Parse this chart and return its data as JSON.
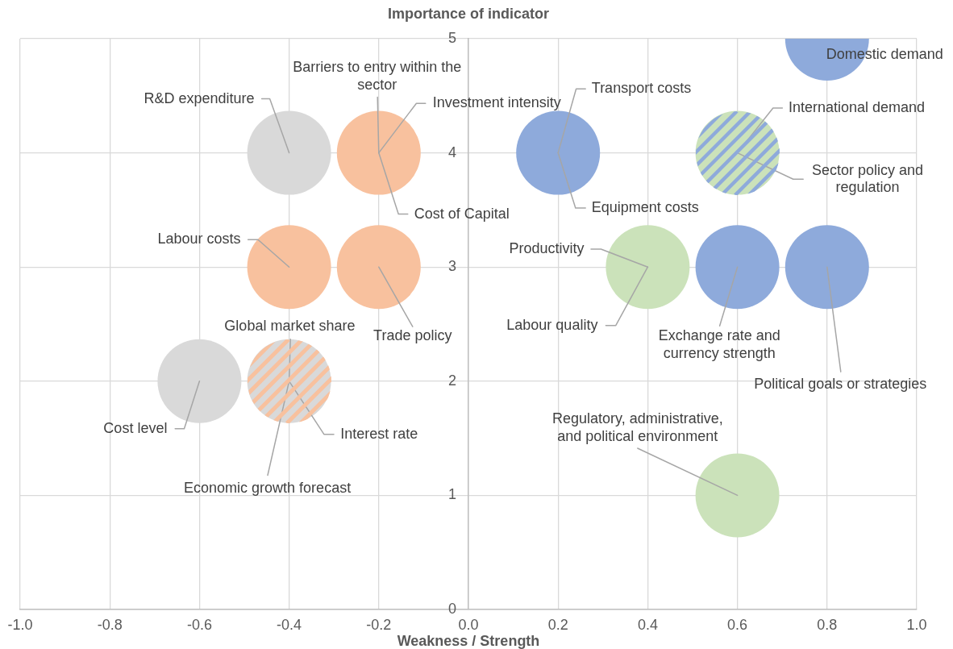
{
  "chart_data": {
    "type": "bubble",
    "xlabel": "Weakness / Strength",
    "ylabel": "Importance of indicator",
    "x": [
      -0.4,
      -0.2,
      0.2,
      0.8,
      0.6,
      -0.4,
      -0.2,
      0.4,
      0.6,
      0.8,
      -0.4,
      -0.6,
      0.6
    ],
    "values": [
      4,
      4,
      4,
      5,
      4,
      3,
      3,
      3,
      3,
      3,
      2,
      2,
      1
    ],
    "sizes": [
      1,
      1,
      1,
      1,
      1,
      1,
      1,
      1,
      1,
      1,
      1,
      1,
      1
    ],
    "colors": [
      "#d9d9d9",
      "#f8c19e",
      "#8eaadb",
      "#8eaadb",
      "#cbe2ba",
      "#f8c19e",
      "#f8c19e",
      "#cbe2ba",
      "#8eaadb",
      "#8eaadb",
      "#d9d9d9",
      "#d9d9d9",
      "#cbe2ba"
    ],
    "xlim": [
      -1,
      1
    ],
    "xticks": [
      {
        "value": -1,
        "label": "-1.0"
      },
      {
        "value": -0.8,
        "label": "-0.8"
      },
      {
        "value": -0.6,
        "label": "-0.6"
      },
      {
        "value": -0.4,
        "label": "-0.4"
      },
      {
        "value": -0.2,
        "label": "-0.2"
      },
      {
        "value": 0,
        "label": "0.0"
      },
      {
        "value": 0.2,
        "label": "0.2"
      },
      {
        "value": 0.4,
        "label": "0.4"
      },
      {
        "value": 0.6,
        "label": "0.6"
      },
      {
        "value": 0.8,
        "label": "0.8"
      },
      {
        "value": 1,
        "label": "1.0"
      }
    ],
    "ylim": [
      0,
      5
    ],
    "yticks": [
      0,
      1,
      2,
      3,
      4,
      5
    ],
    "grid": true,
    "annotations": [
      {
        "text": "R&D expenditure",
        "x": -0.4,
        "y": 4
      },
      {
        "text": "Barriers to entry within the sector",
        "x": -0.2,
        "y": 4
      },
      {
        "text": "Investment intensity",
        "x": -0.2,
        "y": 4
      },
      {
        "text": "Cost of Capital",
        "x": -0.2,
        "y": 4
      },
      {
        "text": "Transport costs",
        "x": 0.2,
        "y": 4
      },
      {
        "text": "Equipment costs",
        "x": 0.2,
        "y": 4
      },
      {
        "text": "Domestic demand",
        "x": 0.8,
        "y": 5
      },
      {
        "text": "International demand",
        "x": 0.6,
        "y": 4
      },
      {
        "text": "Sector policy and regulation",
        "x": 0.6,
        "y": 4
      },
      {
        "text": "Labour costs",
        "x": -0.4,
        "y": 3
      },
      {
        "text": "Trade policy",
        "x": -0.2,
        "y": 3
      },
      {
        "text": "Productivity",
        "x": 0.4,
        "y": 3
      },
      {
        "text": "Labour quality",
        "x": 0.4,
        "y": 3
      },
      {
        "text": "Exchange rate and currency strength",
        "x": 0.6,
        "y": 3
      },
      {
        "text": "Political goals or strategies",
        "x": 0.8,
        "y": 3
      },
      {
        "text": "Global market share",
        "x": -0.4,
        "y": 2
      },
      {
        "text": "Interest rate",
        "x": -0.4,
        "y": 2
      },
      {
        "text": "Economic growth forecast",
        "x": -0.4,
        "y": 2
      },
      {
        "text": "Cost level",
        "x": -0.6,
        "y": 2
      },
      {
        "text": "Regulatory, administrative, and political environment",
        "x": 0.6,
        "y": 1
      }
    ]
  }
}
